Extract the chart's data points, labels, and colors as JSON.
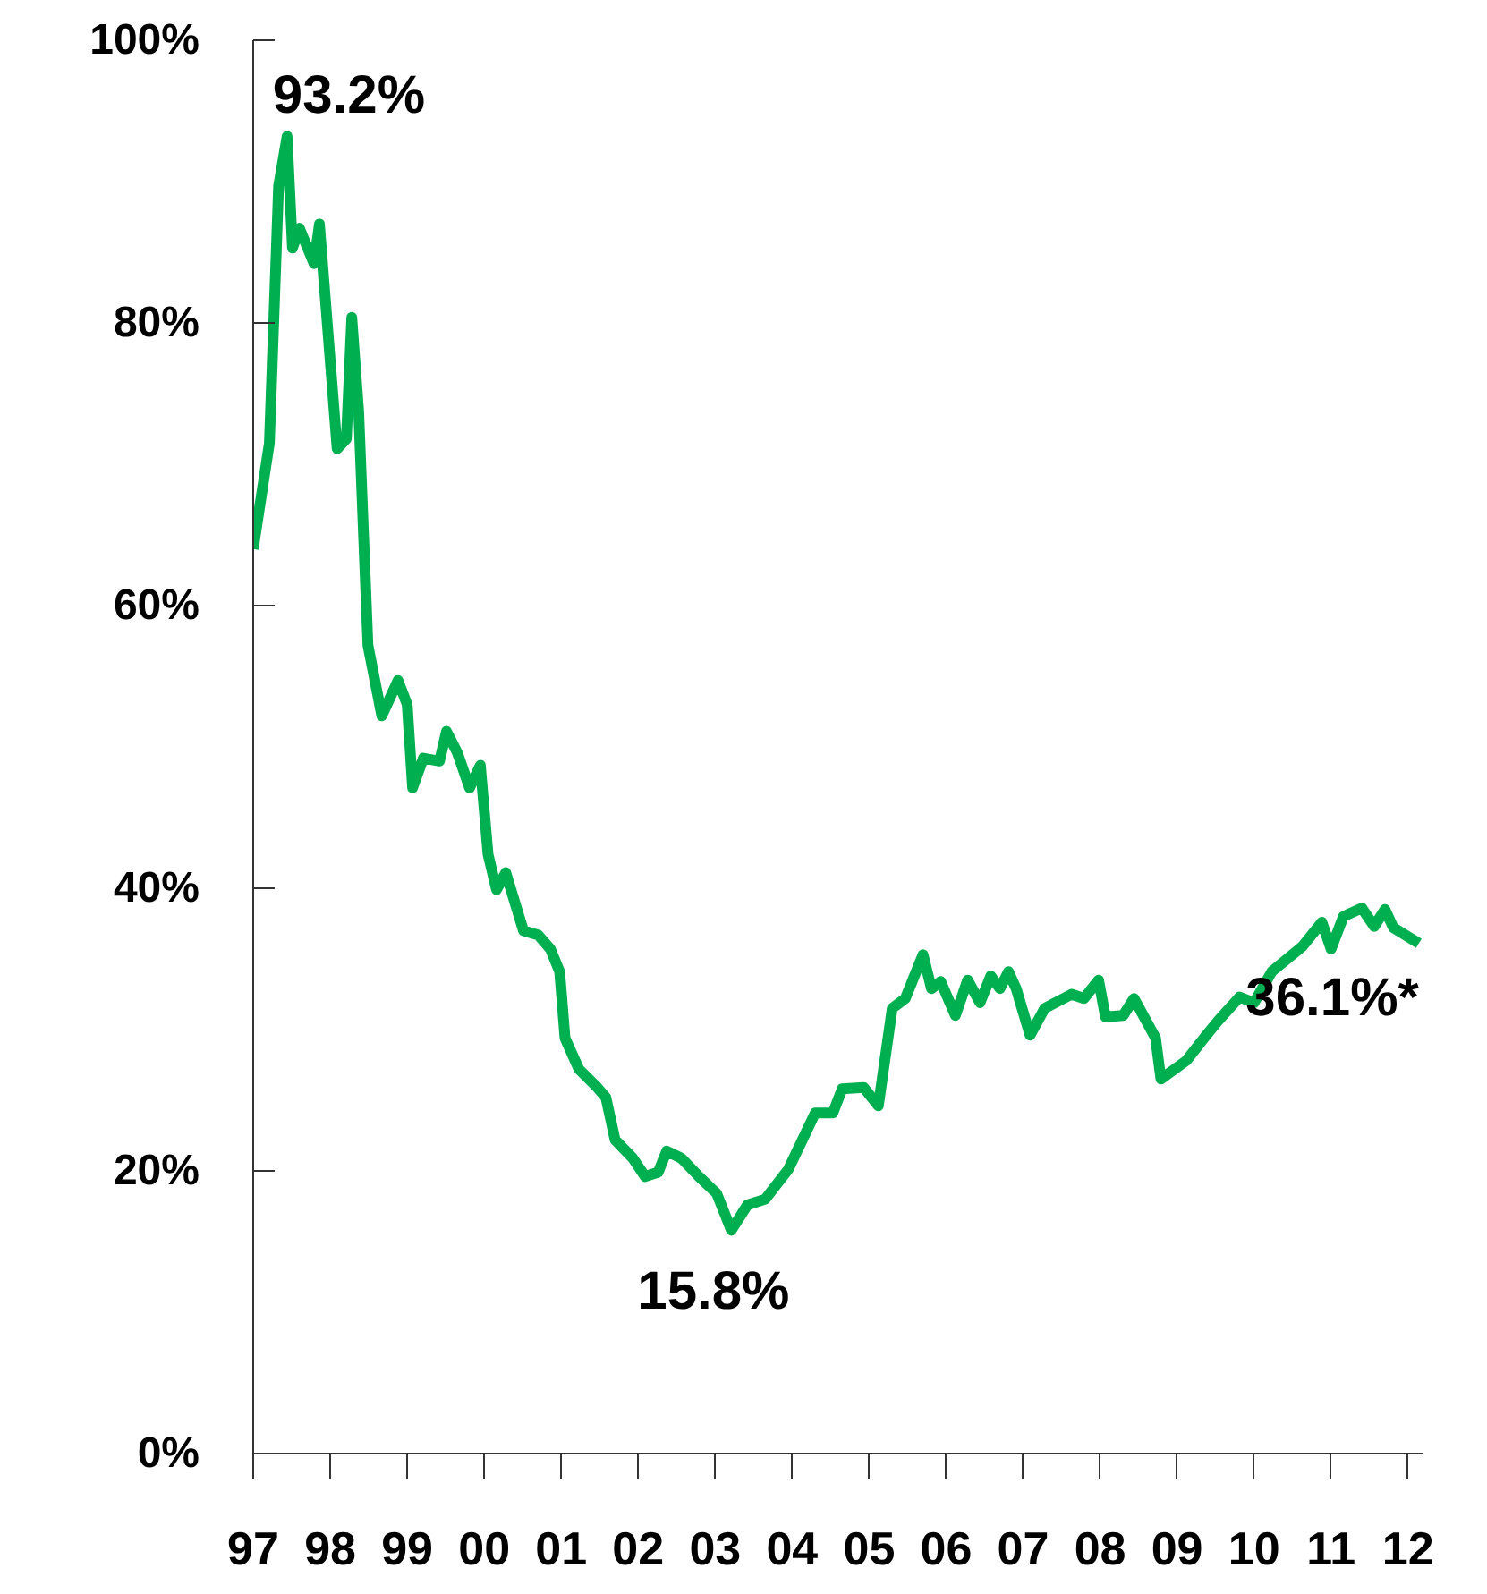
{
  "chart_data": {
    "type": "line",
    "x": [
      1997.0,
      1997.21,
      1997.33,
      1997.44,
      1997.51,
      1997.6,
      1997.79,
      1997.86,
      1998.09,
      1998.21,
      1998.28,
      1998.37,
      1998.49,
      1998.67,
      1998.88,
      1999.0,
      1999.07,
      1999.21,
      1999.42,
      1999.51,
      1999.65,
      1999.81,
      1999.95,
      2000.05,
      2000.16,
      2000.28,
      2000.51,
      2000.7,
      2000.86,
      2000.98,
      2001.05,
      2001.23,
      2001.47,
      2001.58,
      2001.7,
      2001.93,
      2002.09,
      2002.26,
      2002.37,
      2002.56,
      2002.79,
      2003.02,
      2003.21,
      2003.42,
      2003.65,
      2003.95,
      2004.3,
      2004.53,
      2004.65,
      2004.93,
      2005.12,
      2005.3,
      2005.47,
      2005.7,
      2005.81,
      2005.93,
      2006.12,
      2006.28,
      2006.44,
      2006.58,
      2006.7,
      2006.81,
      2006.91,
      2007.09,
      2007.28,
      2007.63,
      2007.79,
      2007.98,
      2008.07,
      2008.3,
      2008.44,
      2008.72,
      2008.79,
      2009.12,
      2009.35,
      2009.53,
      2009.81,
      2010.0,
      2010.23,
      2010.63,
      2010.88,
      2011.0,
      2011.16,
      2011.4,
      2011.56,
      2011.7,
      2011.81,
      2012.14
    ],
    "series": [
      {
        "color": "#00b050",
        "values": [
          64.0,
          71.5,
          89.7,
          93.2,
          85.3,
          86.7,
          84.2,
          87.0,
          71.1,
          71.8,
          80.4,
          73.7,
          57.2,
          52.2,
          54.7,
          53.0,
          47.1,
          49.2,
          49.0,
          51.1,
          49.6,
          47.1,
          48.7,
          42.4,
          39.9,
          41.1,
          37.0,
          36.7,
          35.7,
          34.1,
          29.4,
          27.2,
          25.9,
          25.2,
          22.2,
          20.9,
          19.6,
          19.9,
          21.4,
          20.9,
          19.6,
          18.4,
          15.8,
          17.6,
          18.0,
          20.1,
          24.1,
          24.1,
          25.8,
          25.9,
          24.6,
          31.5,
          32.2,
          35.3,
          32.9,
          33.4,
          31.0,
          33.5,
          31.9,
          33.8,
          32.9,
          34.1,
          32.9,
          29.6,
          31.5,
          32.5,
          32.2,
          33.5,
          30.9,
          31.0,
          32.2,
          29.4,
          26.5,
          27.8,
          29.4,
          30.6,
          32.3,
          31.9,
          34.1,
          35.9,
          37.6,
          35.7,
          38.0,
          38.6,
          37.3,
          38.5,
          37.2,
          36.1
        ]
      }
    ],
    "xlim": [
      1997,
      2012.2
    ],
    "xticks": [
      {
        "value": 1997,
        "label": "97"
      },
      {
        "value": 1998,
        "label": "98"
      },
      {
        "value": 1999,
        "label": "99"
      },
      {
        "value": 2000,
        "label": "00"
      },
      {
        "value": 2001,
        "label": "01"
      },
      {
        "value": 2002,
        "label": "02"
      },
      {
        "value": 2003,
        "label": "03"
      },
      {
        "value": 2004,
        "label": "04"
      },
      {
        "value": 2005,
        "label": "05"
      },
      {
        "value": 2006,
        "label": "06"
      },
      {
        "value": 2007,
        "label": "07"
      },
      {
        "value": 2008,
        "label": "08"
      },
      {
        "value": 2009,
        "label": "09"
      },
      {
        "value": 2010,
        "label": "10"
      },
      {
        "value": 2011,
        "label": "11"
      },
      {
        "value": 2012,
        "label": "12"
      }
    ],
    "ylim": [
      0,
      100
    ],
    "yticks": [
      {
        "value": 0,
        "label": "0%"
      },
      {
        "value": 20,
        "label": "20%"
      },
      {
        "value": 40,
        "label": "40%"
      },
      {
        "value": 60,
        "label": "60%"
      },
      {
        "value": 80,
        "label": "80%"
      },
      {
        "value": 100,
        "label": "100%"
      }
    ],
    "annotations": [
      {
        "text": "93.2%",
        "x": 1997.44,
        "y": 93.2
      },
      {
        "text": "15.8%",
        "x": 2003.21,
        "y": 15.8
      },
      {
        "text": "36.1%*",
        "x": 2012.14,
        "y": 36.1
      }
    ],
    "grid": false,
    "marker": "none",
    "line_style": "solid"
  }
}
